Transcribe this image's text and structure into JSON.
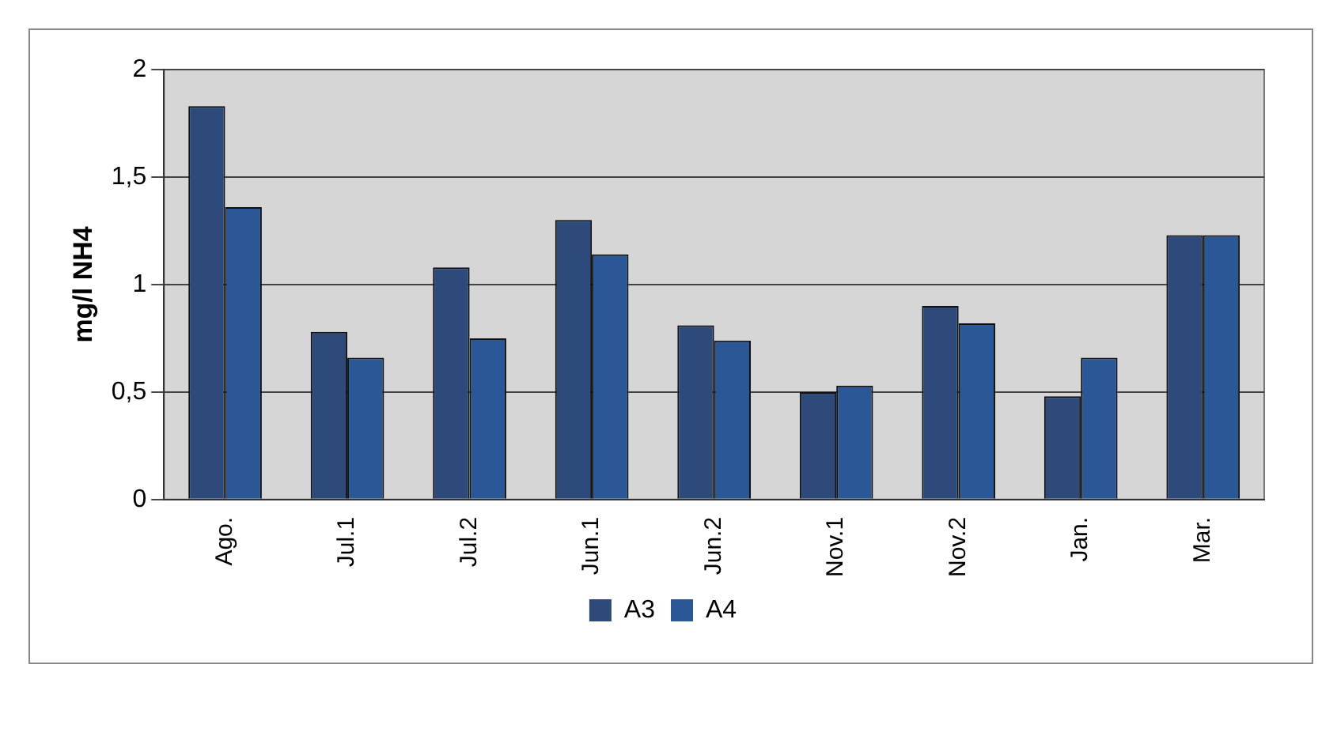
{
  "chart_data": {
    "type": "bar",
    "ylabel": "mg/l NH4",
    "categories": [
      "Ago.",
      "Jul.1",
      "Jul.2",
      "Jun.1",
      "Jun.2",
      "Nov.1",
      "Nov.2",
      "Jan.",
      "Mar."
    ],
    "series": [
      {
        "name": "A3",
        "color": "#2e4a7a",
        "values": [
          1.83,
          0.78,
          1.08,
          1.3,
          0.81,
          0.5,
          0.9,
          0.48,
          1.23
        ]
      },
      {
        "name": "A4",
        "color": "#2a5896",
        "values": [
          1.36,
          0.66,
          0.75,
          1.14,
          0.74,
          0.53,
          0.82,
          0.66,
          1.23
        ]
      }
    ],
    "ylim": [
      0,
      2
    ],
    "yticks": [
      {
        "value": 0,
        "label": "0"
      },
      {
        "value": 0.5,
        "label": "0,5"
      },
      {
        "value": 1,
        "label": "1"
      },
      {
        "value": 1.5,
        "label": "1,5"
      },
      {
        "value": 2,
        "label": "2"
      }
    ],
    "grid": "y",
    "legend": "bottom"
  }
}
